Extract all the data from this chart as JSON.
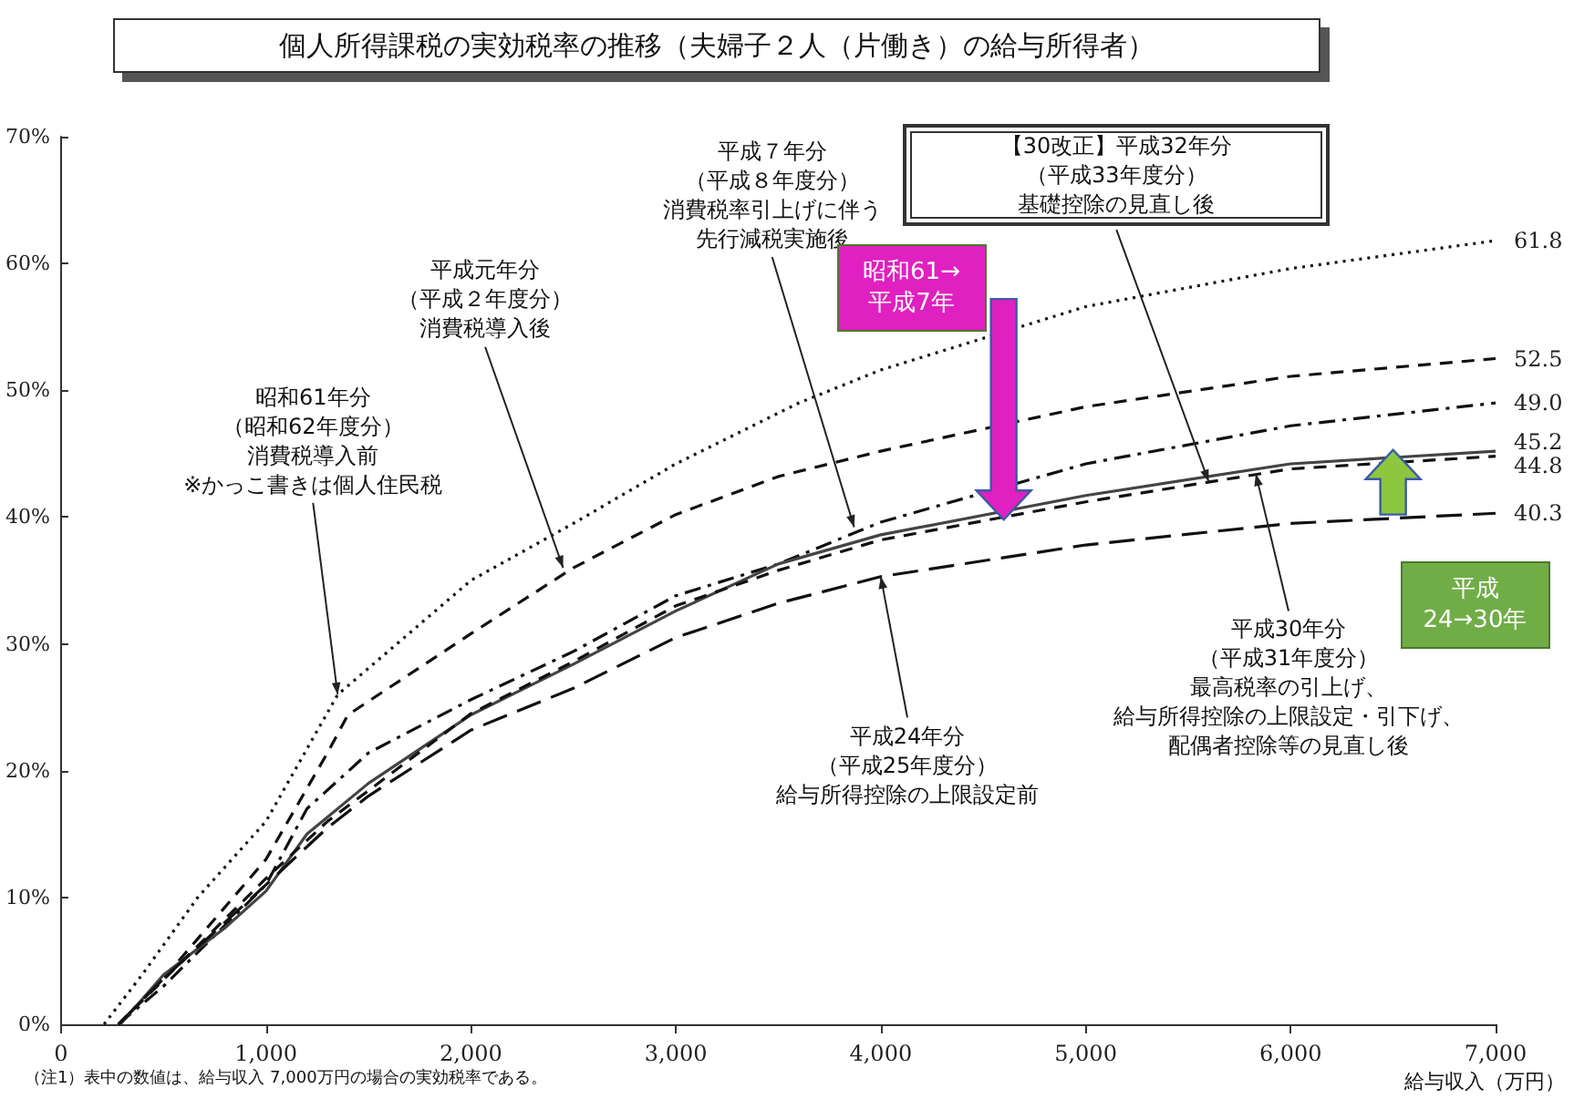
{
  "chart_data": {
    "type": "line",
    "title": "個人所得課税の実効税率の推移（夫婦子２人（片働き）の給与所得者）",
    "xlabel": "給与収入（万円）",
    "xlim": [
      0,
      7000
    ],
    "xticks": [
      0,
      {
        "value": 1000,
        "label": "1,000"
      },
      {
        "value": 2000,
        "label": "2,000"
      },
      {
        "value": 3000,
        "label": "3,000"
      },
      {
        "value": 4000,
        "label": "4,000"
      },
      {
        "value": 5000,
        "label": "5,000"
      },
      {
        "value": 6000,
        "label": "6,000"
      },
      {
        "value": 7000,
        "label": "7,000"
      }
    ],
    "ylim": [
      0,
      70
    ],
    "yticks": [
      {
        "value": 0,
        "label": "0%"
      },
      {
        "value": 10,
        "label": "10%"
      },
      {
        "value": 20,
        "label": "20%"
      },
      {
        "value": 30,
        "label": "30%"
      },
      {
        "value": 40,
        "label": "40%"
      },
      {
        "value": 50,
        "label": "50%"
      },
      {
        "value": 60,
        "label": "60%"
      },
      {
        "value": 70,
        "label": "70%"
      }
    ],
    "grid": false,
    "marker": "none",
    "series": [
      {
        "color": "#111111",
        "line_style": "dotted",
        "x": [
          210,
          400,
          667,
          1000,
          1350,
          2000,
          2500,
          3000,
          3600,
          4000,
          5000,
          6000,
          7000
        ],
        "values": [
          0,
          4,
          10,
          16,
          26,
          35,
          39.5,
          44.2,
          49,
          51.6,
          56.6,
          59.6,
          61.8
        ],
        "value_labels": [
          null,
          null,
          null,
          null,
          null,
          null,
          null,
          null,
          null,
          null,
          null,
          null,
          "61.8"
        ]
      },
      {
        "color": "#111111",
        "line_style": "dashed",
        "x": [
          280,
          500,
          1000,
          1300,
          1400,
          2000,
          2500,
          3000,
          3500,
          4000,
          5000,
          6000,
          7000
        ],
        "values": [
          0,
          3.6,
          13,
          21.4,
          24.4,
          30.8,
          36,
          40.2,
          43.2,
          45.2,
          48.7,
          51.1,
          52.5
        ],
        "value_labels": [
          null,
          null,
          null,
          null,
          null,
          null,
          null,
          null,
          null,
          null,
          null,
          null,
          "52.5"
        ]
      },
      {
        "color": "#111111",
        "line_style": "dashdot",
        "x": [
          280,
          500,
          1000,
          1200,
          1500,
          2000,
          2500,
          3000,
          3500,
          4000,
          5000,
          6000,
          7000
        ],
        "values": [
          0,
          3,
          11,
          17,
          21.4,
          25.6,
          29.4,
          33.8,
          36.3,
          39.6,
          44.2,
          47.2,
          49.0
        ],
        "value_labels": [
          null,
          null,
          null,
          null,
          null,
          null,
          null,
          null,
          null,
          null,
          null,
          null,
          "49.0"
        ]
      },
      {
        "color": "#444444",
        "line_style": "solid",
        "x": [
          290,
          500,
          800,
          1000,
          1200,
          1500,
          2000,
          2500,
          3000,
          3500,
          4000,
          5000,
          6000,
          7000
        ],
        "values": [
          0,
          3.9,
          7.6,
          10.5,
          15,
          19,
          24.4,
          28.4,
          32.6,
          36.3,
          38.6,
          41.7,
          44.2,
          45.2
        ],
        "value_labels": [
          null,
          null,
          null,
          null,
          null,
          null,
          null,
          null,
          null,
          null,
          null,
          null,
          null,
          "45.2"
        ]
      },
      {
        "color": "#111111",
        "line_style": "dashed",
        "x": [
          280,
          500,
          1000,
          1300,
          2000,
          2500,
          3000,
          3500,
          4000,
          5000,
          6000,
          7000
        ],
        "values": [
          0,
          3.5,
          11.5,
          16,
          24.5,
          28.6,
          33,
          35.8,
          38.2,
          41.2,
          43.8,
          44.8
        ],
        "value_labels": [
          null,
          null,
          null,
          null,
          null,
          null,
          null,
          null,
          null,
          null,
          null,
          "44.8"
        ]
      },
      {
        "color": "#111111",
        "line_style": "longdash",
        "x": [
          280,
          500,
          1000,
          1300,
          1500,
          2000,
          2500,
          3000,
          3500,
          4000,
          5000,
          6000,
          7000
        ],
        "values": [
          0,
          3.6,
          11,
          15.5,
          18,
          23.2,
          26.5,
          30.5,
          33.2,
          35.3,
          37.8,
          39.5,
          40.3
        ],
        "value_labels": [
          null,
          null,
          null,
          null,
          null,
          null,
          null,
          null,
          null,
          null,
          null,
          null,
          "40.3"
        ]
      }
    ],
    "annotations": [
      {
        "text": "昭和61年分（昭和62年度分）消費税導入前※かっこ書きは個人住民税",
        "x": 1350,
        "y": 26
      },
      {
        "text": "平成元年分（平成２年度分）消費税導入後",
        "x": 2450,
        "y": 36
      },
      {
        "text": "平成７年分（平成８年度分）消費税率引上げに伴う先行減税実施後",
        "x": 3870,
        "y": 39.2
      },
      {
        "text": "【30改正】平成32年分（平成33年度分）基礎控除の見直し後",
        "x": 5600,
        "y": 42.8
      },
      {
        "text": "平成30年分（平成31年度分）最高税率の引上げ、給与所得控除の上限設定・引下げ、配偶者控除等の見直し後",
        "x": 5830,
        "y": 43.4
      },
      {
        "text": "平成24年分（平成25年度分）給与所得控除の上限設定前",
        "x": 4000,
        "y": 35.3
      },
      "昭和61→平成7年",
      "平成24→30年",
      "（注1）表中の数値は、給与収入 7,000万円の場合の実効税率である。"
    ]
  }
}
